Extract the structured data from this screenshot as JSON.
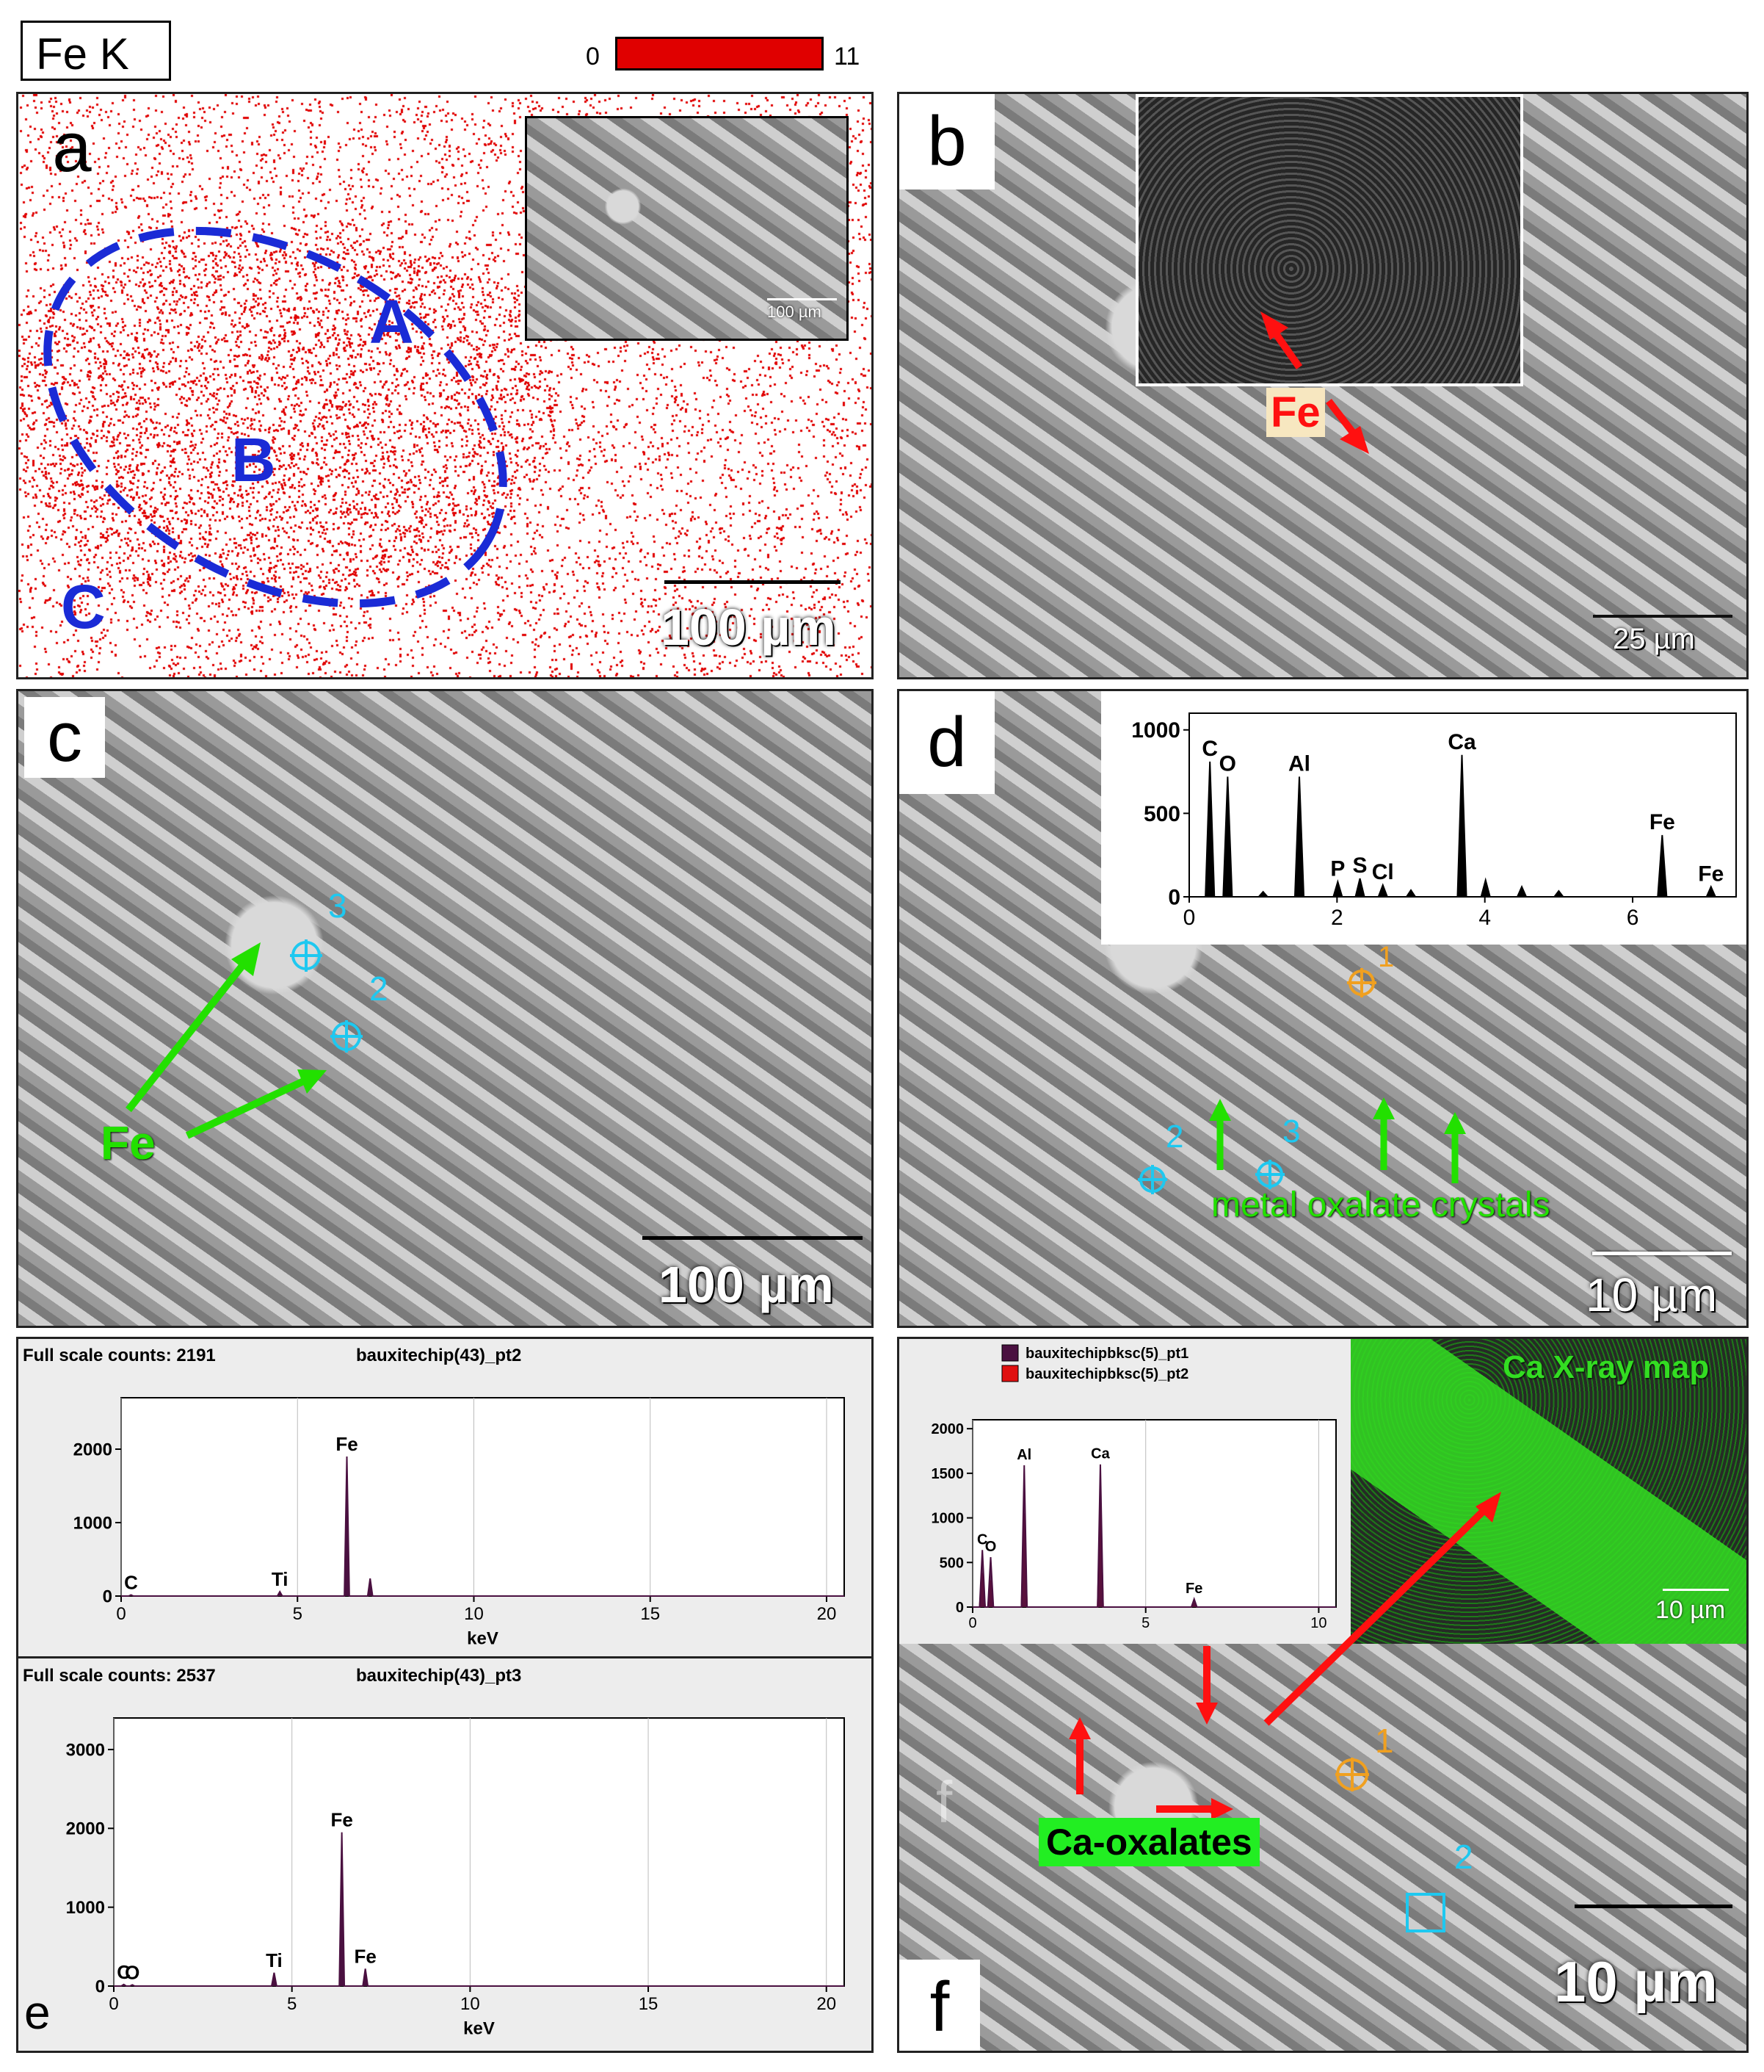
{
  "header": {
    "element": "Fe K",
    "scale_min": "0",
    "scale_max": "11"
  },
  "panels": {
    "a": {
      "label": "a",
      "regions": [
        "A",
        "B",
        "C"
      ],
      "scale": "100 µm",
      "inset_scale": "100 µm"
    },
    "b": {
      "label": "b",
      "annotation": "Fe",
      "scale": "25 µm"
    },
    "c": {
      "label": "c",
      "points": [
        "3",
        "2"
      ],
      "annotation": "Fe",
      "scale": "100 µm"
    },
    "d": {
      "label": "d",
      "points": [
        "1",
        "2",
        "3"
      ],
      "annotation": "metal oxalate crystals",
      "scale": "10 µm"
    },
    "e": {
      "label": "e"
    },
    "f": {
      "label": "f",
      "faint_label": "f",
      "points": [
        "1",
        "2"
      ],
      "annotation": "Ca-oxalates",
      "map_title": "Ca X-ray map",
      "scale": "10 µm",
      "map_scale": "10 µm"
    }
  },
  "colors": {
    "map_red": "#e00000",
    "blue": "#1a2bd6",
    "green": "#22e000",
    "cyan": "#1ec8f0",
    "orange": "#f0a020",
    "spec_dark": "#4a1040",
    "spec_red": "#e01010",
    "ca_green": "#33dd22"
  },
  "chart_data": [
    {
      "type": "line",
      "panel": "d",
      "x": [
        0,
        0.28,
        0.52,
        1.0,
        1.49,
        2.01,
        2.31,
        2.62,
        3.0,
        3.69,
        4.01,
        4.5,
        5.0,
        6.4,
        7.06
      ],
      "series": [
        {
          "values": [
            0,
            810,
            720,
            30,
            720,
            90,
            110,
            70,
            40,
            850,
            100,
            60,
            35,
            370,
            60
          ]
        }
      ],
      "peak_labels": [
        {
          "x": 0.28,
          "label": "C"
        },
        {
          "x": 0.52,
          "label": "O"
        },
        {
          "x": 1.49,
          "label": "Al"
        },
        {
          "x": 2.01,
          "label": "P"
        },
        {
          "x": 2.31,
          "label": "S"
        },
        {
          "x": 2.62,
          "label": "Cl"
        },
        {
          "x": 3.69,
          "label": "Ca"
        },
        {
          "x": 6.4,
          "label": "Fe"
        },
        {
          "x": 7.06,
          "label": "Fe"
        }
      ],
      "xlim": [
        0,
        7.4
      ],
      "ylim": [
        0,
        1100
      ],
      "xticks": [
        "0",
        "2",
        "4",
        "6"
      ],
      "yticks": [
        "0",
        "500",
        "1000"
      ]
    },
    {
      "type": "line",
      "panel": "e-top",
      "title": "Full scale counts: 2191",
      "subtitle": "bauxitechip(43)_pt2",
      "xlabel": "keV",
      "x": [
        0.28,
        4.5,
        6.4,
        7.06
      ],
      "series": [
        {
          "values": [
            15,
            60,
            1900,
            240
          ]
        }
      ],
      "peak_labels": [
        {
          "x": 0.28,
          "label": "C"
        },
        {
          "x": 4.5,
          "label": "Ti"
        },
        {
          "x": 6.4,
          "label": "Fe"
        }
      ],
      "xlim": [
        0,
        20.5
      ],
      "ylim": [
        0,
        2700
      ],
      "xticks": [
        "0",
        "5",
        "10",
        "15",
        "20"
      ],
      "yticks": [
        "0",
        "1000",
        "2000"
      ]
    },
    {
      "type": "line",
      "panel": "e-bottom",
      "title": "Full scale counts: 2537",
      "subtitle": "bauxitechip(43)_pt3",
      "xlabel": "keV",
      "x": [
        0.28,
        0.52,
        4.5,
        6.4,
        7.06
      ],
      "series": [
        {
          "values": [
            20,
            15,
            170,
            1950,
            220
          ]
        }
      ],
      "peak_labels": [
        {
          "x": 0.28,
          "label": "C"
        },
        {
          "x": 0.52,
          "label": "O"
        },
        {
          "x": 4.5,
          "label": "Ti"
        },
        {
          "x": 6.4,
          "label": "Fe"
        },
        {
          "x": 7.06,
          "label": "Fe"
        }
      ],
      "xlim": [
        0,
        20.5
      ],
      "ylim": [
        0,
        3400
      ],
      "xticks": [
        "0",
        "5",
        "10",
        "15",
        "20"
      ],
      "yticks": [
        "0",
        "1000",
        "2000",
        "3000"
      ]
    },
    {
      "type": "line",
      "panel": "f",
      "x": [
        0.28,
        0.52,
        1.49,
        3.69,
        6.4
      ],
      "series": [
        {
          "name": "bauxitechipbksc(5)_pt1",
          "values": [
            380,
            300,
            1050,
            1200,
            40
          ]
        },
        {
          "name": "bauxitechipbksc(5)_pt2",
          "values": [
            640,
            560,
            1590,
            1600,
            90
          ]
        }
      ],
      "peak_labels": [
        {
          "x": 0.28,
          "label": "C"
        },
        {
          "x": 0.52,
          "label": "O"
        },
        {
          "x": 1.49,
          "label": "Al"
        },
        {
          "x": 3.69,
          "label": "Ca"
        },
        {
          "x": 6.4,
          "label": "Fe"
        }
      ],
      "xlim": [
        0,
        10.5
      ],
      "ylim": [
        0,
        2100
      ],
      "xticks": [
        "0",
        "5",
        "10"
      ],
      "yticks": [
        "0",
        "500",
        "1000",
        "1500",
        "2000"
      ]
    }
  ]
}
